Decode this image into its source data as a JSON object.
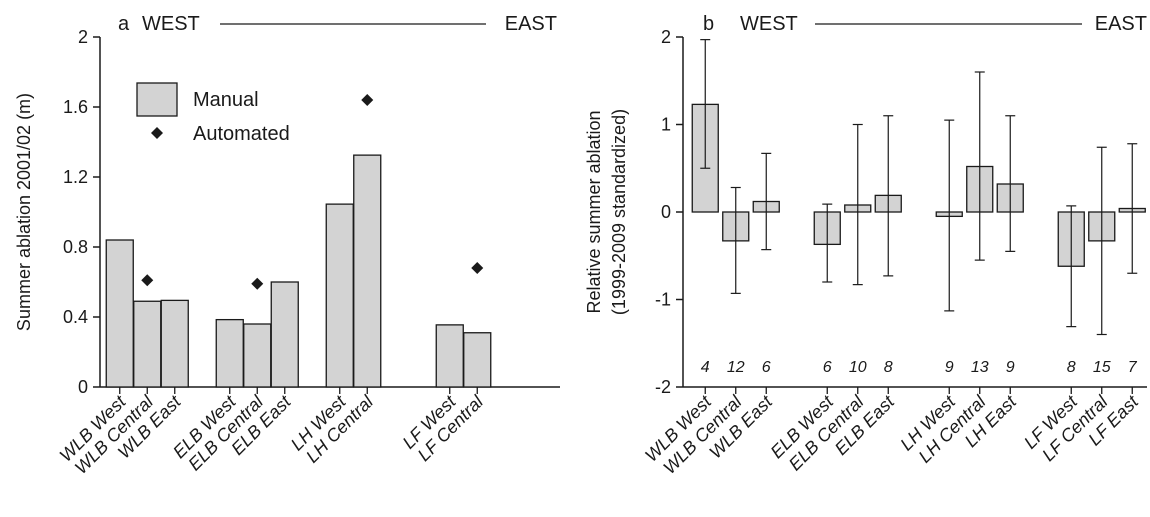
{
  "colors": {
    "bar_fill": "#d3d3d3",
    "stroke": "#1a1a1a",
    "marker": "#1a1a1a"
  },
  "chart_data": [
    {
      "type": "bar",
      "panel_label": "a",
      "header_left": "WEST",
      "header_right": "EAST",
      "title": "",
      "ylabel": "Summer ablation 2001/02 (m)",
      "xlabel": "",
      "ylim": [
        0,
        2
      ],
      "yticks": [
        "0",
        "0.4",
        "0.8",
        "1.2",
        "1.6",
        "2"
      ],
      "grid": false,
      "legend_position": "upper-left",
      "categories": [
        "WLB West",
        "WLB Central",
        "WLB East",
        "",
        "ELB West",
        "ELB Central",
        "ELB East",
        "",
        "LH West",
        "LH Central",
        "",
        "",
        "LF West",
        "LF Central",
        ""
      ],
      "series": [
        {
          "name": "Manual",
          "kind": "bar",
          "values": [
            0.84,
            0.49,
            0.495,
            null,
            0.385,
            0.36,
            0.6,
            null,
            1.045,
            1.325,
            null,
            null,
            0.355,
            0.31,
            null
          ]
        },
        {
          "name": "Automated",
          "kind": "marker",
          "values": [
            null,
            0.61,
            null,
            null,
            null,
            0.59,
            null,
            null,
            null,
            1.64,
            null,
            null,
            null,
            0.68,
            null
          ]
        }
      ]
    },
    {
      "type": "bar",
      "panel_label": "b",
      "header_left": "WEST",
      "header_right": "EAST",
      "title": "",
      "ylabel": "Relative summer ablation",
      "ylabel2": "(1999-2009 standardized)",
      "xlabel": "",
      "ylim": [
        -2,
        2
      ],
      "yticks": [
        "-2",
        "-1",
        "0",
        "1",
        "2"
      ],
      "grid": false,
      "categories": [
        "WLB West",
        "WLB Central",
        "WLB East",
        "",
        "ELB West",
        "ELB Central",
        "ELB East",
        "",
        "LH West",
        "LH Central",
        "LH East",
        "",
        "LF West",
        "LF Central",
        "LF East"
      ],
      "values": [
        1.23,
        -0.33,
        0.12,
        null,
        -0.37,
        0.08,
        0.19,
        null,
        -0.05,
        0.52,
        0.32,
        null,
        -0.62,
        -0.33,
        0.04
      ],
      "error_low": [
        0.5,
        -0.93,
        -0.43,
        null,
        -0.8,
        -0.83,
        -0.73,
        null,
        -1.13,
        -0.55,
        -0.45,
        null,
        -1.31,
        -1.4,
        -0.7
      ],
      "error_high": [
        1.97,
        0.28,
        0.67,
        null,
        0.09,
        1.0,
        1.1,
        null,
        1.05,
        1.6,
        1.1,
        null,
        0.07,
        0.74,
        0.78
      ],
      "counts": [
        "4",
        "12",
        "6",
        "",
        "6",
        "10",
        "8",
        "",
        "9",
        "13",
        "9",
        "",
        "8",
        "15",
        "7"
      ]
    }
  ]
}
